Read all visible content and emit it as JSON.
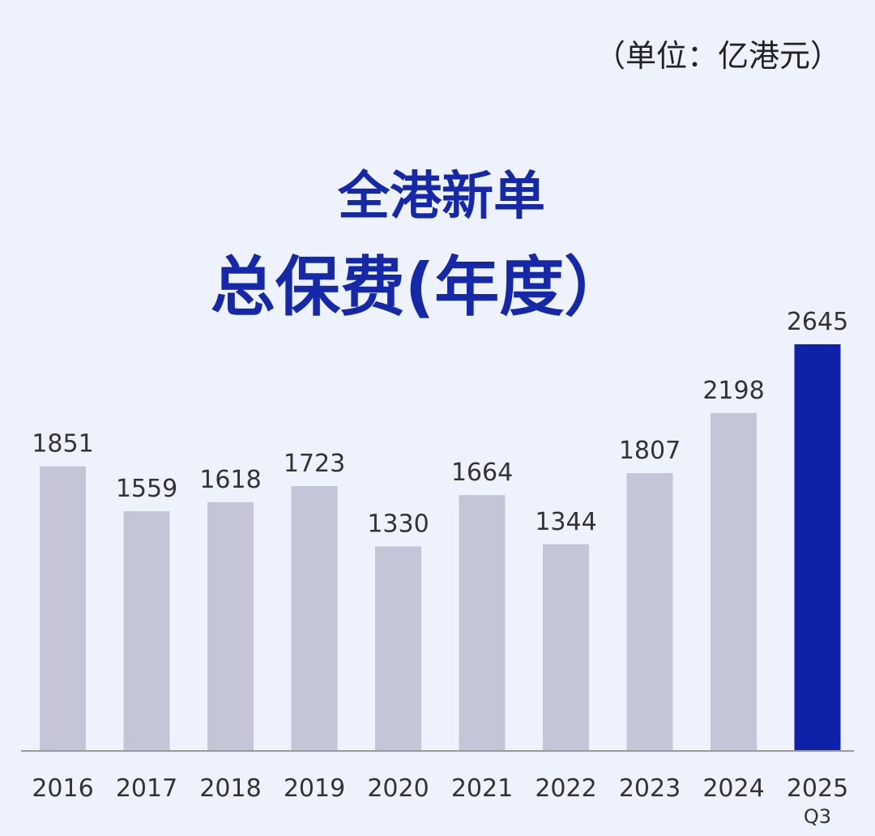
{
  "unit": "（单位：亿港元）",
  "chart_data": {
    "type": "bar",
    "title_line1": "全港新单",
    "title_line2": "总保费(年度）",
    "categories": [
      "2016",
      "2017",
      "2018",
      "2019",
      "2020",
      "2021",
      "2022",
      "2023",
      "2024",
      "2025"
    ],
    "category_sublabels": [
      "",
      "",
      "",
      "",
      "",
      "",
      "",
      "",
      "",
      "Q3"
    ],
    "values": [
      1851,
      1559,
      1618,
      1723,
      1330,
      1664,
      1344,
      1807,
      2198,
      2645
    ],
    "value_labels": [
      "1851",
      "1559",
      "1618",
      "1723",
      "1330",
      "1664",
      "1344",
      "1807",
      "2198",
      "2645"
    ],
    "ylim": [
      0,
      2645
    ],
    "grid": false,
    "colors": {
      "default_bar": "#c5c5d8",
      "highlight_bar": "#0d22a8",
      "baseline": "#9a9a9a"
    },
    "highlight_index": 9
  }
}
